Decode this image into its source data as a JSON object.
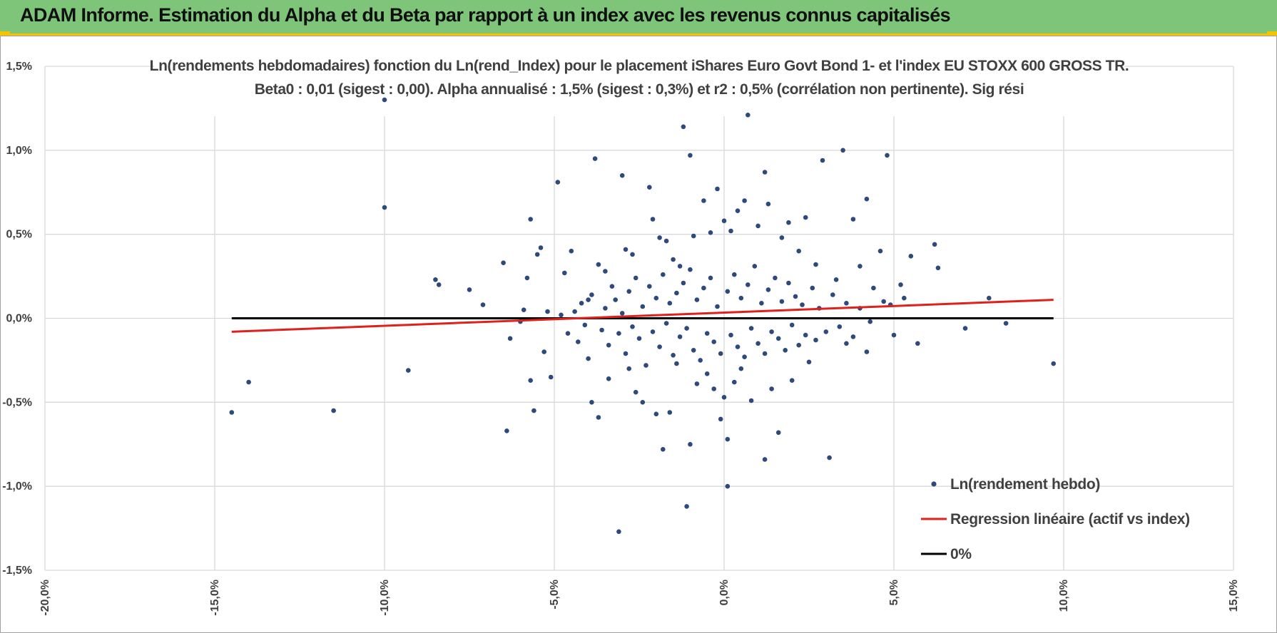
{
  "banner": {
    "title": "ADAM Informe. Estimation du Alpha et du Beta par rapport à un index avec les revenus connus capitalisés"
  },
  "colors": {
    "banner_bg": "#7ec57a",
    "banner_accent": "#f4c400",
    "points": "#2e4a7d",
    "regression": "#e0201b",
    "zero_line": "#000000",
    "grid": "#d9d9d9"
  },
  "chart_data": {
    "type": "scatter",
    "title_lines": [
      "Ln(rendements hebdomadaires) fonction du Ln(rend_Index) pour le placement iShares Euro Govt Bond 1- et l'index EU STOXX 600 GROSS TR.",
      "Beta0 : 0,01 (sigest : 0,00).  Alpha annualisé : 1,5% (sigest : 0,3%) et r2 : 0,5% (corrélation non pertinente). Sig rési"
    ],
    "xlabel": "",
    "ylabel": "",
    "xlim": [
      -0.2,
      0.15
    ],
    "ylim": [
      -0.015,
      0.015
    ],
    "x_ticks": [
      -0.2,
      -0.15,
      -0.1,
      -0.05,
      0.0,
      0.05,
      0.1,
      0.15
    ],
    "x_tick_labels": [
      "-20,0%",
      "-15,0%",
      "-10,0%",
      "-5,0%",
      "0,0%",
      "5,0%",
      "10,0%",
      "15,0%"
    ],
    "y_ticks": [
      0.015,
      0.01,
      0.005,
      0.0,
      -0.005,
      -0.01,
      -0.015
    ],
    "y_tick_labels": [
      "1,5%",
      "1,0%",
      "0,5%",
      "0,0%",
      "-0,5%",
      "-1,0%",
      "-1,5%"
    ],
    "grid": true,
    "legend_position": "bottom-right",
    "series": [
      {
        "name": "Ln(rendement hebdo)",
        "kind": "scatter",
        "points": [
          [
            -0.145,
            -0.0056
          ],
          [
            -0.14,
            -0.0038
          ],
          [
            -0.115,
            -0.0055
          ],
          [
            -0.1,
            0.013
          ],
          [
            -0.1,
            0.0066
          ],
          [
            -0.093,
            -0.0031
          ],
          [
            -0.085,
            0.0023
          ],
          [
            -0.084,
            0.002
          ],
          [
            -0.075,
            0.0017
          ],
          [
            -0.071,
            0.0008
          ],
          [
            -0.065,
            0.0033
          ],
          [
            -0.064,
            -0.0067
          ],
          [
            -0.063,
            -0.0012
          ],
          [
            -0.059,
            0.0005
          ],
          [
            -0.058,
            0.0024
          ],
          [
            -0.057,
            0.0059
          ],
          [
            -0.057,
            -0.0037
          ],
          [
            -0.056,
            -0.0055
          ],
          [
            -0.055,
            0.0038
          ],
          [
            -0.054,
            0.0042
          ],
          [
            -0.052,
            0.0004
          ],
          [
            -0.051,
            -0.0035
          ],
          [
            -0.049,
            0.0081
          ],
          [
            -0.047,
            0.0027
          ],
          [
            -0.045,
            0.004
          ],
          [
            -0.04,
            0.0011
          ],
          [
            -0.039,
            -0.005
          ],
          [
            -0.038,
            0.0095
          ],
          [
            -0.037,
            -0.0059
          ],
          [
            -0.037,
            0.0032
          ],
          [
            -0.035,
            0.0028
          ],
          [
            -0.034,
            -0.0036
          ],
          [
            -0.033,
            0.0019
          ],
          [
            -0.031,
            -0.0127
          ],
          [
            -0.03,
            0.0085
          ],
          [
            -0.029,
            0.0041
          ],
          [
            -0.028,
            -0.003
          ],
          [
            -0.027,
            0.0038
          ],
          [
            -0.026,
            -0.0044
          ],
          [
            -0.024,
            -0.005
          ],
          [
            -0.022,
            0.0078
          ],
          [
            -0.021,
            0.0059
          ],
          [
            -0.02,
            -0.0057
          ],
          [
            -0.019,
            0.0048
          ],
          [
            -0.018,
            -0.0078
          ],
          [
            -0.017,
            0.0046
          ],
          [
            -0.016,
            -0.0056
          ],
          [
            -0.015,
            0.0035
          ],
          [
            -0.014,
            -0.0027
          ],
          [
            -0.013,
            0.0031
          ],
          [
            -0.012,
            0.0114
          ],
          [
            -0.011,
            -0.0112
          ],
          [
            -0.01,
            0.0097
          ],
          [
            -0.01,
            -0.0075
          ],
          [
            -0.009,
            0.0049
          ],
          [
            -0.008,
            -0.0039
          ],
          [
            -0.006,
            0.007
          ],
          [
            -0.005,
            -0.0033
          ],
          [
            -0.004,
            0.0051
          ],
          [
            -0.003,
            -0.0042
          ],
          [
            -0.002,
            0.0077
          ],
          [
            -0.001,
            -0.006
          ],
          [
            0.0,
            0.0058
          ],
          [
            0.0,
            -0.0047
          ],
          [
            0.001,
            -0.01
          ],
          [
            0.001,
            -0.0072
          ],
          [
            0.002,
            0.0052
          ],
          [
            0.003,
            -0.0038
          ],
          [
            0.004,
            0.0064
          ],
          [
            0.005,
            -0.003
          ],
          [
            0.006,
            0.007
          ],
          [
            0.007,
            0.0121
          ],
          [
            0.008,
            -0.0049
          ],
          [
            0.01,
            0.0055
          ],
          [
            0.012,
            0.0087
          ],
          [
            0.012,
            -0.0084
          ],
          [
            0.013,
            0.0068
          ],
          [
            0.014,
            -0.0042
          ],
          [
            0.016,
            -0.0068
          ],
          [
            0.017,
            0.0048
          ],
          [
            0.019,
            0.0057
          ],
          [
            0.02,
            -0.0037
          ],
          [
            0.022,
            0.004
          ],
          [
            0.024,
            0.006
          ],
          [
            0.025,
            -0.0026
          ],
          [
            0.027,
            0.0032
          ],
          [
            0.029,
            0.0094
          ],
          [
            0.031,
            -0.0083
          ],
          [
            0.033,
            0.0023
          ],
          [
            0.035,
            0.01
          ],
          [
            0.036,
            -0.0015
          ],
          [
            0.038,
            0.0059
          ],
          [
            0.04,
            0.0031
          ],
          [
            0.042,
            0.0071
          ],
          [
            0.042,
            -0.002
          ],
          [
            0.044,
            0.0018
          ],
          [
            0.046,
            0.004
          ],
          [
            0.048,
            0.0097
          ],
          [
            0.049,
            0.0008
          ],
          [
            0.05,
            -0.001
          ],
          [
            0.052,
            0.002
          ],
          [
            0.053,
            0.0012
          ],
          [
            0.055,
            0.0037
          ],
          [
            0.057,
            -0.0015
          ],
          [
            0.062,
            0.0044
          ],
          [
            0.063,
            0.003
          ],
          [
            0.071,
            -0.0006
          ],
          [
            0.078,
            0.0012
          ],
          [
            0.083,
            -0.0003
          ],
          [
            0.097,
            -0.0027
          ],
          [
            -0.06,
            -0.0002
          ],
          [
            -0.053,
            -0.002
          ],
          [
            -0.048,
            0.0002
          ],
          [
            -0.046,
            -0.0009
          ],
          [
            -0.044,
            0.0004
          ],
          [
            -0.043,
            -0.0014
          ],
          [
            -0.042,
            0.0009
          ],
          [
            -0.041,
            -0.0004
          ],
          [
            -0.04,
            -0.0024
          ],
          [
            -0.039,
            0.0014
          ],
          [
            -0.036,
            -0.0007
          ],
          [
            -0.035,
            0.0006
          ],
          [
            -0.034,
            -0.0016
          ],
          [
            -0.032,
            0.0011
          ],
          [
            -0.031,
            -0.0009
          ],
          [
            -0.03,
            0.0003
          ],
          [
            -0.029,
            -0.0021
          ],
          [
            -0.028,
            0.0016
          ],
          [
            -0.027,
            -0.0005
          ],
          [
            -0.026,
            0.0024
          ],
          [
            -0.025,
            -0.0012
          ],
          [
            -0.024,
            0.0007
          ],
          [
            -0.023,
            -0.0028
          ],
          [
            -0.022,
            0.0019
          ],
          [
            -0.021,
            -0.0008
          ],
          [
            -0.02,
            0.0012
          ],
          [
            -0.019,
            -0.0017
          ],
          [
            -0.018,
            0.0026
          ],
          [
            -0.017,
            -0.0003
          ],
          [
            -0.016,
            0.0009
          ],
          [
            -0.015,
            -0.0022
          ],
          [
            -0.014,
            0.0015
          ],
          [
            -0.013,
            -0.0011
          ],
          [
            -0.012,
            0.0021
          ],
          [
            -0.011,
            -0.0006
          ],
          [
            -0.01,
            0.0029
          ],
          [
            -0.009,
            -0.0019
          ],
          [
            -0.008,
            0.0011
          ],
          [
            -0.007,
            -0.0025
          ],
          [
            -0.006,
            0.0018
          ],
          [
            -0.005,
            -0.0009
          ],
          [
            -0.004,
            0.0024
          ],
          [
            -0.003,
            -0.0014
          ],
          [
            -0.002,
            0.0007
          ],
          [
            -0.001,
            -0.0021
          ],
          [
            0.001,
            0.0016
          ],
          [
            0.002,
            -0.001
          ],
          [
            0.003,
            0.0026
          ],
          [
            0.004,
            -0.0017
          ],
          [
            0.005,
            0.0012
          ],
          [
            0.006,
            -0.0023
          ],
          [
            0.007,
            0.002
          ],
          [
            0.008,
            -0.0006
          ],
          [
            0.009,
            0.0031
          ],
          [
            0.01,
            -0.0015
          ],
          [
            0.011,
            0.0009
          ],
          [
            0.012,
            -0.0021
          ],
          [
            0.013,
            0.0017
          ],
          [
            0.014,
            -0.0008
          ],
          [
            0.015,
            0.0024
          ],
          [
            0.016,
            -0.0012
          ],
          [
            0.017,
            0.001
          ],
          [
            0.018,
            -0.0019
          ],
          [
            0.019,
            0.0021
          ],
          [
            0.02,
            -0.0004
          ],
          [
            0.021,
            0.0013
          ],
          [
            0.022,
            -0.0016
          ],
          [
            0.023,
            0.0008
          ],
          [
            0.024,
            -0.001
          ],
          [
            0.026,
            0.0018
          ],
          [
            0.027,
            -0.0013
          ],
          [
            0.028,
            0.0006
          ],
          [
            0.03,
            -0.0008
          ],
          [
            0.032,
            0.0014
          ],
          [
            0.034,
            -0.0005
          ],
          [
            0.036,
            0.0009
          ],
          [
            0.038,
            -0.0011
          ],
          [
            0.04,
            0.0006
          ],
          [
            0.043,
            -0.0002
          ],
          [
            0.047,
            0.001
          ]
        ]
      },
      {
        "name": "Regression linéaire (actif vs index)",
        "kind": "line",
        "points": [
          [
            -0.145,
            -0.0008
          ],
          [
            0.097,
            0.0011
          ]
        ]
      },
      {
        "name": "0%",
        "kind": "line",
        "points": [
          [
            -0.145,
            0.0
          ],
          [
            0.097,
            0.0
          ]
        ]
      }
    ]
  }
}
